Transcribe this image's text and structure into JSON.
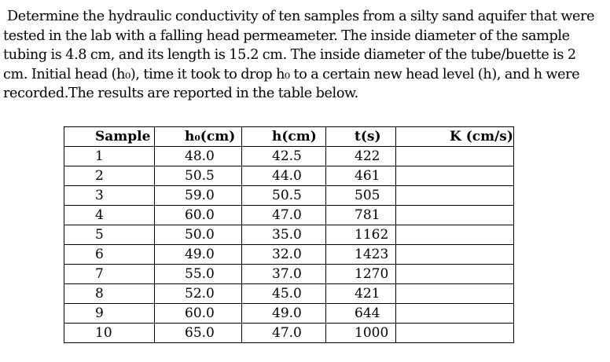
{
  "problem": {
    "lines": [
      "Determine the hydraulic conductivity of ten samples from a silty sand aquifer that were",
      "tested in the lab with a falling head permeameter. The inside diameter of the sample",
      "tubing is 4.8 cm, and its length is 15.2 cm. The inside diameter of the tube/buette is 2",
      "cm. Initial head (h₀), time it took to drop h₀ to a certain new head level (h), and h were",
      "recorded.The results are reported in the table below."
    ]
  },
  "table": {
    "headers": [
      "Sample",
      "h₀(cm)",
      "h(cm)",
      "t(s)",
      "K (cm/s)"
    ],
    "rows": [
      [
        "1",
        "48.0",
        "42.5",
        "422",
        ""
      ],
      [
        "2",
        "50.5",
        "44.0",
        "461",
        ""
      ],
      [
        "3",
        "59.0",
        "50.5",
        "505",
        ""
      ],
      [
        "4",
        "60.0",
        "47.0",
        "781",
        ""
      ],
      [
        "5",
        "50.0",
        "35.0",
        "1162",
        ""
      ],
      [
        "6",
        "49.0",
        "32.0",
        "1423",
        ""
      ],
      [
        "7",
        "55.0",
        "37.0",
        "1270",
        ""
      ],
      [
        "8",
        "52.0",
        "45.0",
        "421",
        ""
      ],
      [
        "9",
        "60.0",
        "49.0",
        "644",
        ""
      ],
      [
        "10",
        "65.0",
        "47.0",
        "1000",
        ""
      ]
    ]
  }
}
